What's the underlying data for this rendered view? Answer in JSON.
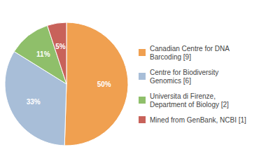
{
  "chart_data": {
    "type": "pie",
    "categories": [
      "Canadian Centre for DNA\nBarcoding [9]",
      "Centre for Biodiversity\nGenomics [6]",
      "Universita di Firenze,\nDepartment of Biology [2]",
      "Mined from GenBank, NCBI [1]"
    ],
    "values": [
      50,
      33,
      11,
      5
    ],
    "value_labels": [
      "50%",
      "33%",
      "11%",
      "5%"
    ],
    "colors": [
      "#f0a050",
      "#a8bed8",
      "#8fbf6a",
      "#c8625a"
    ],
    "data_labels": true,
    "legend": "right"
  }
}
